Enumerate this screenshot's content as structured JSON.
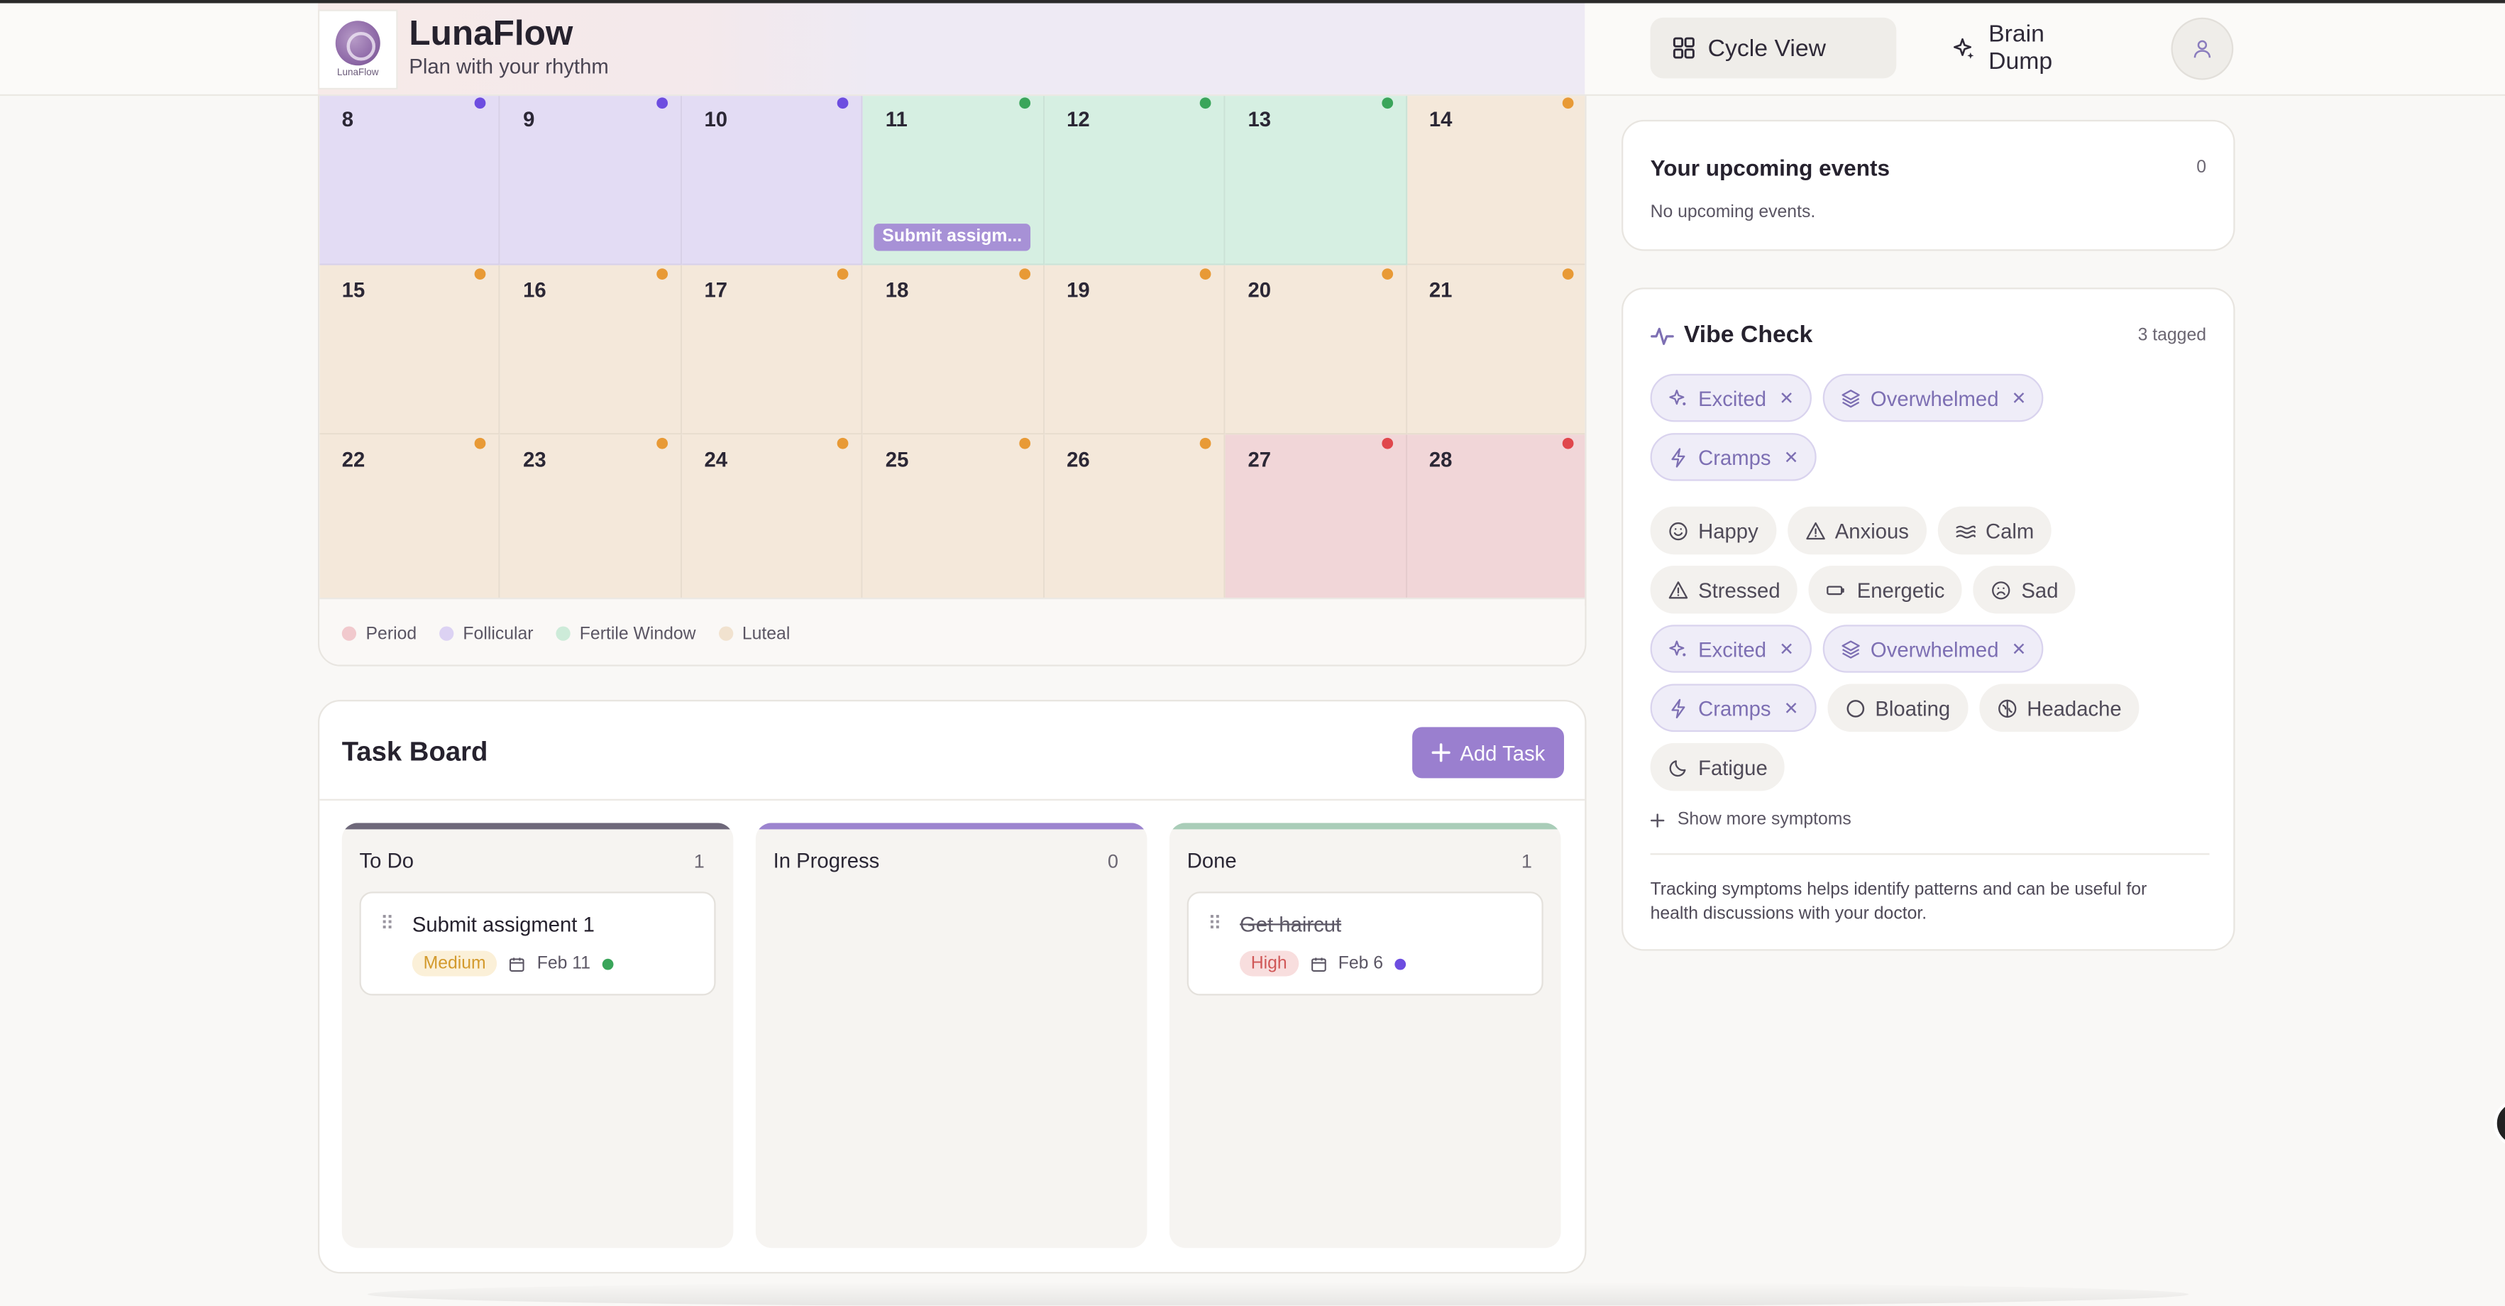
{
  "app": {
    "name": "LunaFlow",
    "tagline": "Plan with your rhythm",
    "logo_caption": "LunaFlow"
  },
  "nav": {
    "cycle_view": "Cycle View",
    "brain_dump": "Brain Dump"
  },
  "calendar": {
    "rows": [
      [
        {
          "day": "8",
          "phase": "follicular"
        },
        {
          "day": "9",
          "phase": "follicular"
        },
        {
          "day": "10",
          "phase": "follicular"
        },
        {
          "day": "11",
          "phase": "fertile",
          "event": "Submit assigm..."
        },
        {
          "day": "12",
          "phase": "fertile"
        },
        {
          "day": "13",
          "phase": "fertile"
        },
        {
          "day": "14",
          "phase": "luteal"
        }
      ],
      [
        {
          "day": "15",
          "phase": "luteal"
        },
        {
          "day": "16",
          "phase": "luteal"
        },
        {
          "day": "17",
          "phase": "luteal"
        },
        {
          "day": "18",
          "phase": "luteal"
        },
        {
          "day": "19",
          "phase": "luteal"
        },
        {
          "day": "20",
          "phase": "luteal"
        },
        {
          "day": "21",
          "phase": "luteal"
        }
      ],
      [
        {
          "day": "22",
          "phase": "luteal"
        },
        {
          "day": "23",
          "phase": "luteal"
        },
        {
          "day": "24",
          "phase": "luteal"
        },
        {
          "day": "25",
          "phase": "luteal"
        },
        {
          "day": "26",
          "phase": "luteal"
        },
        {
          "day": "27",
          "phase": "period"
        },
        {
          "day": "28",
          "phase": "period"
        }
      ]
    ],
    "phase_colors": {
      "period": {
        "bg": "#f1d6d8",
        "dot": "#e0474c"
      },
      "follicular": {
        "bg": "#e3dcf4",
        "dot": "#6d4de0"
      },
      "fertile": {
        "bg": "#d6efe2",
        "dot": "#3aa55a"
      },
      "luteal": {
        "bg": "#f4e8da",
        "dot": "#e89a36"
      }
    },
    "legend": [
      {
        "label": "Period",
        "color": "#f1c9cd"
      },
      {
        "label": "Follicular",
        "color": "#dcd2f3"
      },
      {
        "label": "Fertile Window",
        "color": "#cdebd9"
      },
      {
        "label": "Luteal",
        "color": "#f1e2cf"
      }
    ]
  },
  "taskboard": {
    "title": "Task Board",
    "add_label": "Add Task",
    "columns": [
      {
        "title": "To Do",
        "count": "1",
        "bar_color": "#6e687a",
        "tasks": [
          {
            "name": "Submit assigment 1",
            "priority": "Medium",
            "date": "Feb 11",
            "dot_color": "#3aa55a",
            "done": false
          }
        ]
      },
      {
        "title": "In Progress",
        "count": "0",
        "bar_color": "#9c84cf",
        "tasks": []
      },
      {
        "title": "Done",
        "count": "1",
        "bar_color": "#a9cdb8",
        "tasks": [
          {
            "name": "Get haircut",
            "priority": "High",
            "date": "Feb 6",
            "dot_color": "#6d4de0",
            "done": true
          }
        ]
      }
    ]
  },
  "upcoming": {
    "title": "Your upcoming events",
    "count": "0",
    "empty": "No upcoming events."
  },
  "vibe": {
    "title": "Vibe Check",
    "tagged": "3 tagged",
    "selected": [
      {
        "label": "Excited",
        "icon": "sparkle-icon"
      },
      {
        "label": "Overwhelmed",
        "icon": "layers-icon"
      },
      {
        "label": "Cramps",
        "icon": "bolt-icon"
      }
    ],
    "options": [
      {
        "label": "Happy",
        "icon": "smile-icon",
        "active": false
      },
      {
        "label": "Anxious",
        "icon": "triangle-alert-icon",
        "active": false
      },
      {
        "label": "Calm",
        "icon": "waves-icon",
        "active": false
      },
      {
        "label": "Stressed",
        "icon": "triangle-alert-icon",
        "active": false
      },
      {
        "label": "Energetic",
        "icon": "battery-icon",
        "active": false
      },
      {
        "label": "Sad",
        "icon": "frown-icon",
        "active": false
      },
      {
        "label": "Excited",
        "icon": "sparkle-icon",
        "active": true
      },
      {
        "label": "Overwhelmed",
        "icon": "layers-icon",
        "active": true
      },
      {
        "label": "Cramps",
        "icon": "bolt-icon",
        "active": true
      },
      {
        "label": "Bloating",
        "icon": "circle-icon",
        "active": false
      },
      {
        "label": "Headache",
        "icon": "brain-icon",
        "active": false
      },
      {
        "label": "Fatigue",
        "icon": "moon-icon",
        "active": false
      }
    ],
    "show_more": "Show more symptoms",
    "note": "Tracking symptoms helps identify patterns and can be useful for health discussions with your doctor."
  }
}
